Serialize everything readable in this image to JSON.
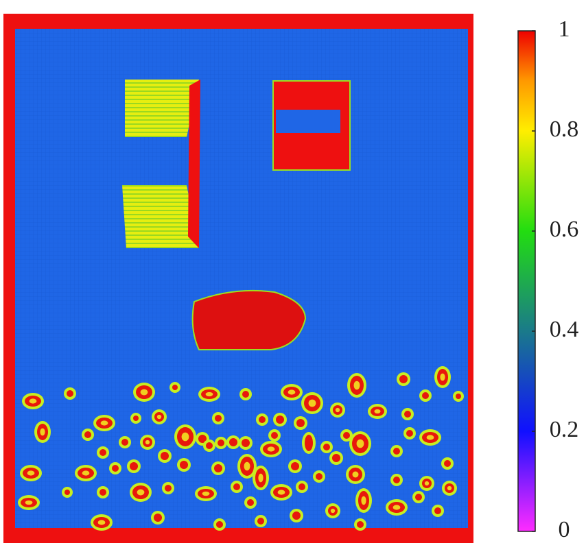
{
  "chart_data": {
    "type": "colormap-field",
    "colorbar": {
      "lim": [
        0,
        1
      ],
      "ticks": [
        0,
        0.2,
        0.4,
        0.6,
        0.8,
        1
      ],
      "stops": [
        {
          "value": 0,
          "color": "#ff2cff"
        },
        {
          "value": 0.2,
          "color": "#1010ff"
        },
        {
          "value": 0.4,
          "color": "#1a7a8a"
        },
        {
          "value": 0.6,
          "color": "#22dd10"
        },
        {
          "value": 0.8,
          "color": "#ffee00"
        },
        {
          "value": 0.9,
          "color": "#ff9900"
        },
        {
          "value": 1,
          "color": "#ee0000"
        }
      ]
    }
  }
}
